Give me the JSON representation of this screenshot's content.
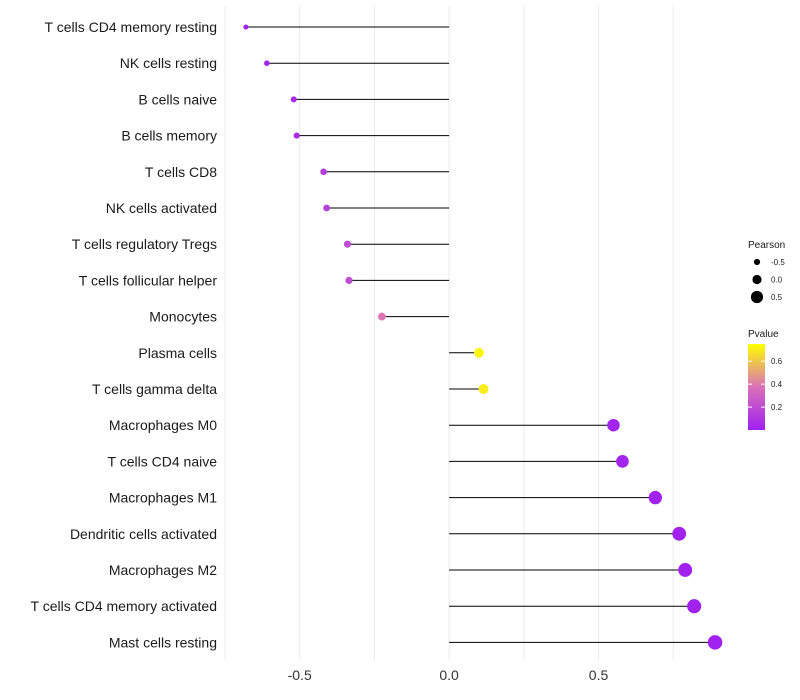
{
  "chart_data": {
    "type": "lollipop",
    "title": "",
    "xlabel": "",
    "ylabel": "",
    "xlim": [
      -0.75,
      0.95
    ],
    "xticks": [
      -0.5,
      0.0,
      0.5
    ],
    "xtick_labels": [
      "-0.5",
      "0.0",
      "0.5"
    ],
    "grid": true,
    "baseline": 0.0,
    "categories": [
      "T cells CD4 memory resting",
      "NK cells resting",
      "B cells naive",
      "B cells memory",
      "T cells CD8",
      "NK cells activated",
      "T cells regulatory  Tregs ",
      "T cells follicular helper",
      "Monocytes",
      "Plasma cells",
      "T cells gamma delta",
      "Macrophages M0",
      "T cells CD4 naive",
      "Macrophages M1",
      "Dendritic cells activated",
      "Macrophages M2",
      "T cells CD4 memory activated",
      "Mast cells resting"
    ],
    "series": [
      {
        "name": "Pearson",
        "values": [
          -0.68,
          -0.61,
          -0.52,
          -0.51,
          -0.42,
          -0.41,
          -0.34,
          -0.335,
          -0.225,
          0.1,
          0.115,
          0.55,
          0.58,
          0.69,
          0.77,
          0.79,
          0.82,
          0.89
        ]
      },
      {
        "name": "Pvalue",
        "values": [
          0.01,
          0.02,
          0.05,
          0.06,
          0.13,
          0.14,
          0.2,
          0.21,
          0.38,
          0.72,
          0.7,
          0.02,
          0.02,
          0.01,
          0.005,
          0.005,
          0.004,
          0.003
        ]
      }
    ],
    "legend": {
      "position": "right",
      "size_title": "Pearson",
      "size_entries": [
        {
          "label": "-0.5",
          "value": -0.5
        },
        {
          "label": "0.0",
          "value": 0.0
        },
        {
          "label": "0.5",
          "value": 0.5
        }
      ],
      "color_title": "Pvalue",
      "color_ticks": [
        {
          "label": "0.6",
          "value": 0.6
        },
        {
          "label": "0.4",
          "value": 0.4
        },
        {
          "label": "0.2",
          "value": 0.2
        }
      ],
      "color_range": [
        0.0,
        0.75
      ],
      "color_low": "#a020f0",
      "color_mid": "#d972b8",
      "color_high": "#ffff00"
    }
  }
}
